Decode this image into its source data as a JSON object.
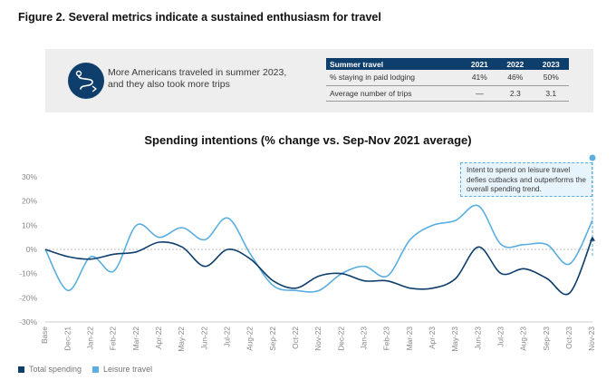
{
  "figure_title": "Figure 2. Several metrics indicate a sustained enthusiasm for travel",
  "panel": {
    "icon": "travel-route-icon",
    "text": "More Americans traveled in summer 2023, and they also took more trips",
    "table": {
      "headers": [
        "Summer travel",
        "2021",
        "2022",
        "2023"
      ],
      "rows": [
        [
          "% staying in paid lodging",
          "41%",
          "46%",
          "50%"
        ],
        [
          "Average number of trips",
          "—",
          "2.3",
          "3.1"
        ]
      ]
    }
  },
  "chart_data": {
    "type": "line",
    "title": "Spending intentions (% change vs. Sep-Nov 2021 average)",
    "xlabel": "",
    "ylabel": "",
    "ylim": [
      -30,
      30
    ],
    "y_ticks": [
      "30%",
      "20%",
      "10%",
      "0%",
      "-10%",
      "-20%",
      "-30%"
    ],
    "categories": [
      "Base",
      "Dec-21",
      "Jan-22",
      "Feb-22",
      "Mar-22",
      "Apr-22",
      "May-22",
      "Jun-22",
      "Jul-22",
      "Aug-22",
      "Sep-22",
      "Oct-22",
      "Nov-22",
      "Dec-22",
      "Jan-23",
      "Feb-23",
      "Mar-23",
      "Apr-23",
      "May-23",
      "Jun-23",
      "Jul-23",
      "Aug-23",
      "Sep-23",
      "Oct-23",
      "Nov-23"
    ],
    "grid": false,
    "legend_position": "bottom-left",
    "series": [
      {
        "name": "Total spending",
        "color": "#0e3e6b",
        "values": [
          0,
          -3,
          -4,
          -2,
          -1,
          3,
          1,
          -7,
          0,
          -4,
          -13,
          -16,
          -11,
          -10,
          -13,
          -13,
          -16,
          -16,
          -12,
          1,
          -10,
          -8,
          -12,
          -18,
          5
        ]
      },
      {
        "name": "Leisure travel",
        "color": "#5aaee0",
        "values": [
          0,
          -17,
          -3,
          -9,
          10,
          5,
          9,
          4,
          13,
          -2,
          -15,
          -17,
          -17,
          -10,
          -7,
          -11,
          4,
          10,
          12,
          18,
          2,
          2,
          2,
          -6,
          12
        ]
      }
    ],
    "annotation": "Intent to spend on leisure travel defies cutbacks and outperforms the overall spending trend."
  }
}
